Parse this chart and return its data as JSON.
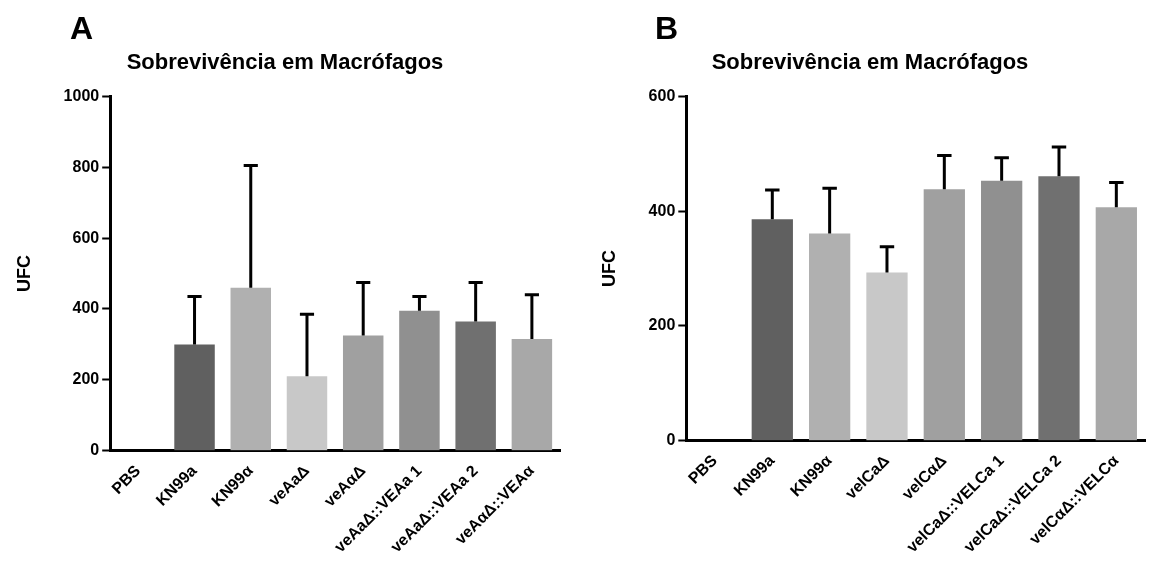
{
  "chart_data": [
    {
      "type": "bar",
      "title": "Sobrevivência em Macrófagos",
      "ylabel": "UFC",
      "annotations": [
        "A"
      ],
      "categories": [
        "PBS",
        "KN99a",
        "KN99α",
        "veAaΔ",
        "veAαΔ",
        "veAaΔ::VEAa 1",
        "veAaΔ::VEAa 2",
        "veAαΔ::VEAα"
      ],
      "values": [
        0,
        300,
        460,
        210,
        325,
        395,
        365,
        315
      ],
      "errors": [
        null,
        [
          300,
          435
        ],
        [
          460,
          805
        ],
        [
          210,
          385
        ],
        [
          325,
          475
        ],
        [
          395,
          435
        ],
        [
          365,
          475
        ],
        [
          315,
          440
        ]
      ],
      "colors": [
        "#ffffff",
        "#606060",
        "#b0b0b0",
        "#c8c8c8",
        "#a0a0a0",
        "#909090",
        "#707070",
        "#a8a8a8"
      ],
      "ylim": [
        0,
        1000
      ],
      "yticks": [
        0,
        200,
        400,
        600,
        800,
        1000
      ],
      "grid": false,
      "legend": false
    },
    {
      "type": "bar",
      "title": "Sobrevivência em Macrófagos",
      "ylabel": "UFC",
      "annotations": [
        "B"
      ],
      "categories": [
        "PBS",
        "KN99a",
        "KN99α",
        "velCaΔ",
        "velCαΔ",
        "velCaΔ::VELCa 1",
        "velCaΔ::VELCa 2",
        "velCαΔ::VELCα"
      ],
      "values": [
        0,
        386,
        361,
        293,
        438,
        453,
        461,
        407
      ],
      "errors": [
        null,
        [
          386,
          437
        ],
        [
          361,
          440
        ],
        [
          293,
          338
        ],
        [
          438,
          497
        ],
        [
          453,
          493
        ],
        [
          461,
          512
        ],
        [
          407,
          450
        ]
      ],
      "colors": [
        "#ffffff",
        "#606060",
        "#b0b0b0",
        "#c8c8c8",
        "#a0a0a0",
        "#909090",
        "#707070",
        "#a8a8a8"
      ],
      "ylim": [
        0,
        600
      ],
      "yticks": [
        0,
        200,
        400,
        600
      ],
      "grid": false,
      "legend": false
    }
  ]
}
